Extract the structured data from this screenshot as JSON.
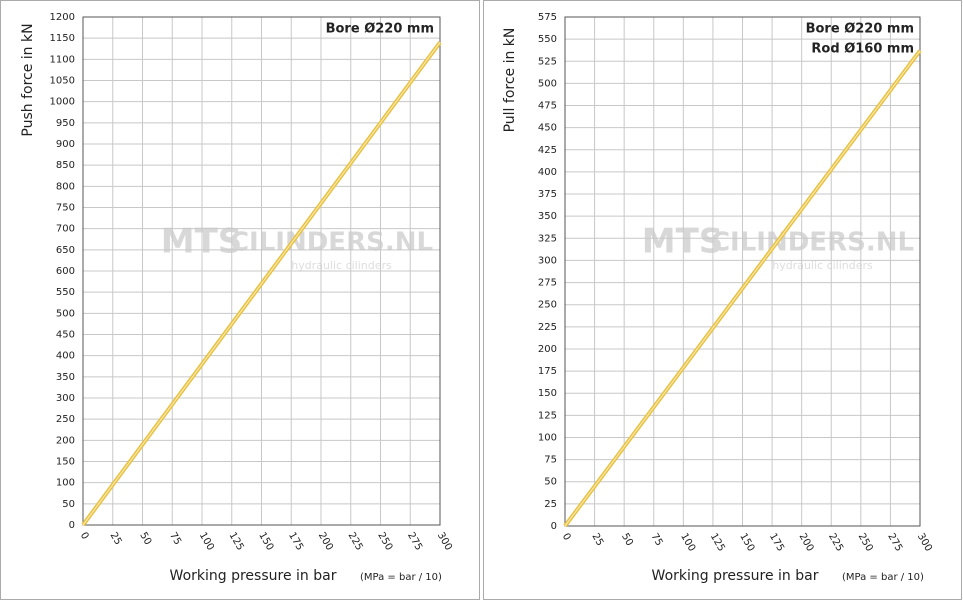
{
  "chart_data": [
    {
      "type": "line",
      "ylabel": "Push force  in kN",
      "xlabel": "Working pressure in bar",
      "xlabel_note": "(MPa = bar / 10)",
      "annotations": [
        "Bore Ø220 mm"
      ],
      "watermark": [
        "MTS",
        "CILINDERS.NL",
        "hydraulic cilinders"
      ],
      "x": [
        0,
        300
      ],
      "series": [
        {
          "color": "#e8c040",
          "values": [
            0,
            1140
          ]
        }
      ],
      "xlim": [
        0,
        300
      ],
      "xticks": [
        0,
        25,
        50,
        75,
        100,
        125,
        150,
        175,
        200,
        225,
        250,
        275,
        300
      ],
      "ylim": [
        0,
        1200
      ],
      "yticks": [
        0,
        50,
        100,
        150,
        200,
        250,
        300,
        350,
        400,
        450,
        500,
        550,
        600,
        650,
        700,
        750,
        800,
        850,
        900,
        950,
        1000,
        1050,
        1100,
        1150,
        1200
      ],
      "grid": true
    },
    {
      "type": "line",
      "ylabel": "Pull force  in kN",
      "xlabel": "Working pressure in bar",
      "xlabel_note": "(MPa = bar / 10)",
      "annotations": [
        "Bore Ø220 mm",
        "Rod Ø160 mm"
      ],
      "watermark": [
        "MTS",
        "CILINDERS.NL",
        "hydraulic cilinders"
      ],
      "x": [
        0,
        300
      ],
      "series": [
        {
          "color": "#e8c040",
          "values": [
            0,
            537
          ]
        }
      ],
      "xlim": [
        0,
        300
      ],
      "xticks": [
        0,
        25,
        50,
        75,
        100,
        125,
        150,
        175,
        200,
        225,
        250,
        275,
        300
      ],
      "ylim": [
        0,
        575
      ],
      "yticks": [
        0,
        25,
        50,
        75,
        100,
        125,
        150,
        175,
        200,
        225,
        250,
        275,
        300,
        325,
        350,
        375,
        400,
        425,
        450,
        475,
        500,
        525,
        550,
        575
      ],
      "grid": true
    }
  ]
}
